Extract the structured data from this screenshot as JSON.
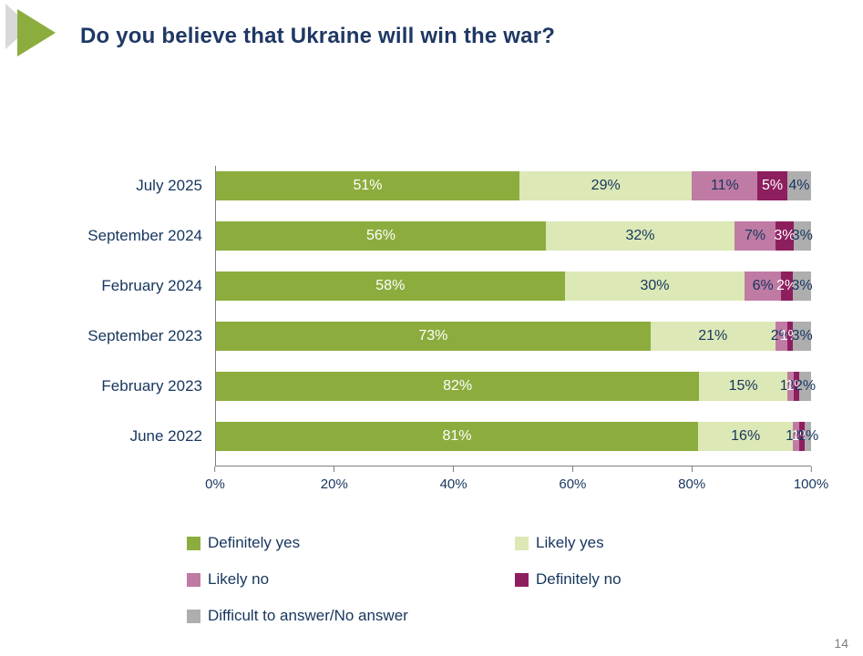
{
  "slide": {
    "title": "Do you believe that Ukraine will win the war?",
    "page_number": "14"
  },
  "chart_data": {
    "type": "bar",
    "variant": "horizontal-stacked",
    "title": "Do you believe that Ukraine will win the war?",
    "categories": [
      "July 2025",
      "September 2024",
      "February 2024",
      "September 2023",
      "February 2023",
      "June 2022"
    ],
    "series": [
      {
        "name": "Definitely yes",
        "color": "#8CAD3E",
        "label_color": "#FFFFFF",
        "values": [
          51,
          56,
          58,
          73,
          82,
          81
        ],
        "labels": [
          "51%",
          "56%",
          "58%",
          "73%",
          "82%",
          "81%"
        ]
      },
      {
        "name": "Likely yes",
        "color": "#DCE8B6",
        "label_color": "#17365D",
        "values": [
          29,
          32,
          30,
          21,
          15,
          16
        ],
        "labels": [
          "29%",
          "32%",
          "30%",
          "21%",
          "15%",
          "16%"
        ]
      },
      {
        "name": "Likely no",
        "color": "#BF7BA4",
        "label_color": "#17365D",
        "values": [
          11,
          7,
          6,
          2,
          1,
          1
        ],
        "labels": [
          "11%",
          "7%",
          "6%",
          "2%",
          "1%",
          "1%"
        ]
      },
      {
        "name": "Definitely no",
        "color": "#8E1F5F",
        "label_color": "#FFFFFF",
        "values": [
          5,
          3,
          2,
          1,
          1,
          1
        ],
        "labels": [
          "5%",
          "3%",
          "2%",
          "1%",
          "1%",
          "1%"
        ]
      },
      {
        "name": "Difficult to answer/No answer",
        "color": "#AEAEAF",
        "label_color": "#17365D",
        "values": [
          4,
          3,
          3,
          3,
          2,
          1
        ],
        "labels": [
          "4%",
          "3%",
          "3%",
          "3%",
          "2%",
          "1%"
        ]
      }
    ],
    "x_ticks": [
      "0%",
      "20%",
      "40%",
      "60%",
      "80%",
      "100%"
    ],
    "xlim": [
      0,
      100
    ],
    "legend_position": "bottom",
    "grid": false
  }
}
